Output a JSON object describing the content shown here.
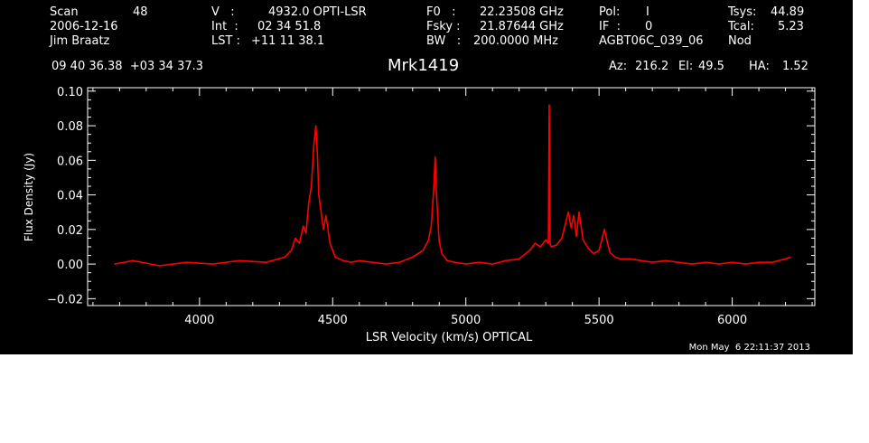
{
  "header": {
    "scan_label": "Scan",
    "scan_value": "48",
    "date": "2006-12-16",
    "observer": "Jim Braatz",
    "v_label": "V   :",
    "v_value": "4932.0 OPTI-LSR",
    "int_label": "Int  :",
    "int_value": "02 34 51.8",
    "lst_label": "LST :",
    "lst_value": "+11 11 38.1",
    "f0_label": "F0   :",
    "f0_value": "22.23508 GHz",
    "fsky_label": "Fsky :",
    "fsky_value": "21.87644 GHz",
    "bw_label": "BW   :",
    "bw_value": "200.0000 MHz",
    "pol_label": "Pol:",
    "pol_value": "I",
    "if_label": "IF  :",
    "if_value": "0",
    "project": "AGBT06C_039_06",
    "tsys_label": "Tsys:",
    "tsys_value": "44.89",
    "tcal_label": "Tcal:",
    "tcal_value": "5.23",
    "procedure": "Nod",
    "coords": "09 40 36.38  +03 34 37.3",
    "source": "Mrk1419",
    "az_label": "Az:",
    "az_value": "216.2",
    "el_label": "El:",
    "el_value": "49.5",
    "ha_label": "HA:",
    "ha_value": "1.52"
  },
  "footer": {
    "timestamp": "Mon May  6 22:11:37 2013"
  },
  "colors": {
    "background": "#000000",
    "foreground": "#ffffff",
    "series": "#ff0000"
  },
  "chart_data": {
    "type": "line",
    "xlabel": "LSR Velocity (km/s) OPTICAL",
    "ylabel": "Flux Density (Jy)",
    "xlim": [
      3580,
      6310
    ],
    "ylim": [
      -0.024,
      0.102
    ],
    "xticks": [
      4000,
      4500,
      5000,
      5500,
      6000
    ],
    "xtick_labels": [
      "4000",
      "4500",
      "5000",
      "5500",
      "6000"
    ],
    "yticks": [
      -0.02,
      0.0,
      0.02,
      0.04,
      0.06,
      0.08,
      0.1
    ],
    "ytick_labels": [
      "−0.02",
      "0.00",
      "0.02",
      "0.04",
      "0.06",
      "0.08",
      "0.10"
    ],
    "grid": false,
    "series": [
      {
        "color": "#ff0000",
        "x": [
          3680,
          3750,
          3850,
          3950,
          4050,
          4150,
          4250,
          4320,
          4345,
          4360,
          4375,
          4390,
          4400,
          4410,
          4420,
          4430,
          4437,
          4443,
          4448,
          4455,
          4465,
          4475,
          4490,
          4510,
          4540,
          4570,
          4600,
          4650,
          4700,
          4750,
          4800,
          4840,
          4860,
          4870,
          4880,
          4885,
          4890,
          4895,
          4900,
          4910,
          4930,
          4960,
          5000,
          5050,
          5100,
          5150,
          5200,
          5240,
          5260,
          5280,
          5300,
          5310,
          5313,
          5316,
          5320,
          5340,
          5360,
          5375,
          5385,
          5395,
          5405,
          5415,
          5425,
          5440,
          5460,
          5480,
          5500,
          5520,
          5540,
          5560,
          5580,
          5620,
          5660,
          5700,
          5750,
          5800,
          5850,
          5900,
          5950,
          6000,
          6050,
          6100,
          6150,
          6200,
          6220
        ],
        "y": [
          0.0,
          0.002,
          -0.001,
          0.001,
          0.0,
          0.002,
          0.001,
          0.004,
          0.008,
          0.015,
          0.012,
          0.022,
          0.018,
          0.035,
          0.045,
          0.07,
          0.08,
          0.062,
          0.04,
          0.032,
          0.02,
          0.028,
          0.012,
          0.004,
          0.002,
          0.001,
          0.002,
          0.001,
          0.0,
          0.001,
          0.004,
          0.008,
          0.014,
          0.022,
          0.045,
          0.062,
          0.04,
          0.025,
          0.013,
          0.006,
          0.002,
          0.001,
          0.0,
          0.001,
          0.0,
          0.002,
          0.003,
          0.008,
          0.012,
          0.01,
          0.014,
          0.012,
          0.092,
          0.012,
          0.01,
          0.011,
          0.015,
          0.024,
          0.03,
          0.021,
          0.028,
          0.016,
          0.03,
          0.014,
          0.009,
          0.006,
          0.008,
          0.02,
          0.007,
          0.004,
          0.003,
          0.003,
          0.002,
          0.001,
          0.002,
          0.001,
          0.0,
          0.001,
          0.0,
          0.001,
          0.0,
          0.001,
          0.001,
          0.003,
          0.004
        ]
      }
    ]
  }
}
